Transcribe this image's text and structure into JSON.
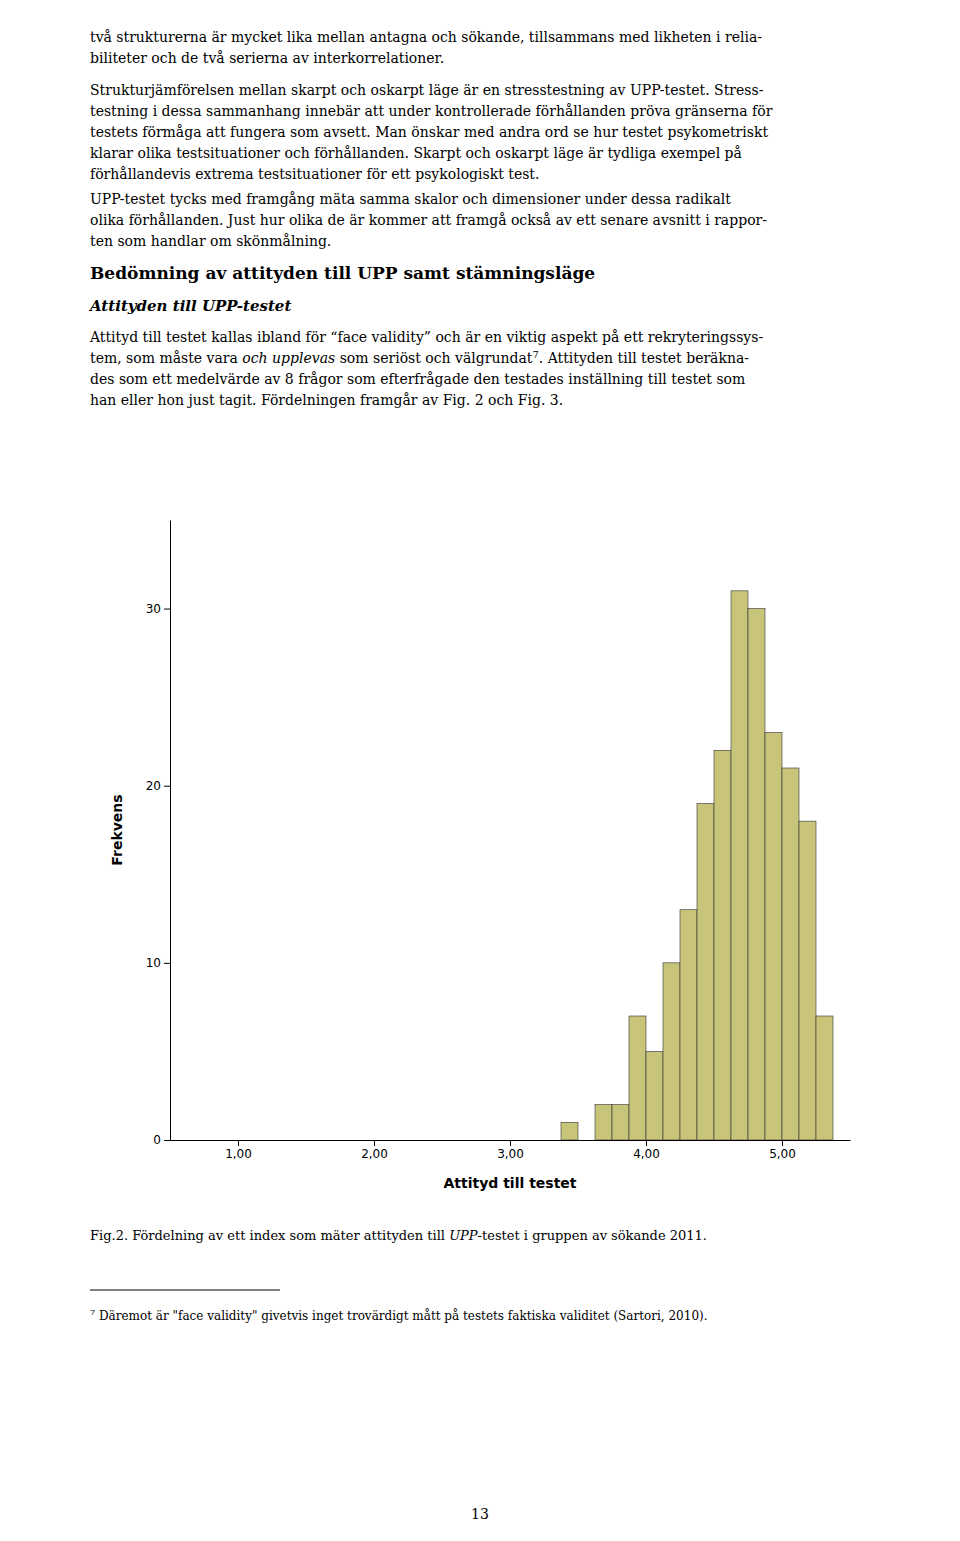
{
  "chart_data": {
    "type": "histogram",
    "xlabel": "Attityd till testet",
    "ylabel": "Frekvens",
    "bins": [
      1,
      1.125,
      1.25,
      1.375,
      1.5,
      1.625,
      1.75,
      1.875,
      2,
      2.125,
      2.25,
      2.375,
      2.5,
      2.625,
      2.75,
      2.875,
      3,
      3.125,
      3.25,
      3.375,
      3.5,
      3.625,
      3.75,
      3.875,
      4,
      4.125,
      4.25,
      4.375,
      4.5,
      4.625,
      4.75,
      4.875,
      5,
      5.125,
      5.25,
      5.375
    ],
    "values": [
      0,
      0,
      0,
      0,
      0,
      0,
      0,
      0,
      0,
      0,
      0,
      0,
      0,
      0,
      0,
      0,
      0,
      0,
      0,
      1,
      0,
      2,
      2,
      7,
      5,
      10,
      13,
      19,
      22,
      31,
      30,
      23,
      21,
      18,
      7
    ],
    "color": "#c8c47a",
    "xlim": [
      0.5,
      5.5
    ],
    "ylim": [
      0,
      35
    ],
    "xticks": [
      {
        "value": 1.0,
        "label": "1,00"
      },
      {
        "value": 2.0,
        "label": "2,00"
      },
      {
        "value": 3.0,
        "label": "3,00"
      },
      {
        "value": 4.0,
        "label": "4,00"
      },
      {
        "value": 5.0,
        "label": "5,00"
      }
    ],
    "yticks": [
      0,
      10,
      20,
      30
    ],
    "grid": false
  },
  "page": {
    "intro": [
      "två strukturerna är mycket lika mellan antagna och sökande, tillsammans med likheten i relia-",
      "biliteter och de två serierna av interkorrelationer."
    ],
    "para1": [
      "Strukturjämförelsen mellan skarpt och oskarpt läge är en stresstestning av UPP-testet. Stress-",
      "testning i dessa sammanhang innebär att under kontrollerade förhållanden pröva gränserna för",
      "testets förmåga att fungera som avsett. Man önskar med andra ord se hur testet psykometriskt",
      "klarar olika testsituationer och förhållanden. Skarpt och oskarpt läge är tydliga exempel på",
      "förhållandevis extrema testsituationer för ett psykologiskt test."
    ],
    "para2": [
      "UPP-testet tycks med framgång mäta samma skalor och dimensioner under dessa radikalt",
      "olika förhållanden. Just hur olika de är kommer att framgå också av ett senare avsnitt i rappor-",
      "ten som handlar om skönmålning."
    ],
    "heading": "Bedömning av attityden till UPP samt stämningsläge",
    "subheading": "Attityden till UPP-testet",
    "para3": [
      [
        {
          "text": "Attityd till testet kallas ibland för “face validity” och är en viktig aspekt på ett rekryteringssys-"
        }
      ],
      [
        {
          "text": "tem, som måste vara "
        },
        {
          "text": "och upplevas",
          "italic": true
        },
        {
          "text": " som seriöst och välgrundat"
        },
        {
          "text": "7",
          "super": true
        },
        {
          "text": ". Attityden till testet beräkna-"
        }
      ],
      [
        {
          "text": "des som ett medelvärde av 8 frågor som efterfrågade den testades inställning till testet som"
        }
      ],
      [
        {
          "text": "han eller hon just tagit. Fördelningen framgår av Fig. 2 och Fig. 3."
        }
      ]
    ],
    "caption": [
      {
        "text": "Fig.2. Fördelning av ett index som mäter attityden till "
      },
      {
        "text": "UPP",
        "italic": true
      },
      {
        "text": "-testet i gruppen av sökande 2011."
      }
    ],
    "footnote": [
      {
        "text": "7",
        "super": true
      },
      {
        "text": " Däremot är \"face validity\" givetvis inget trovärdigt mått på testets faktiska validitet (Sartori, 2010)."
      }
    ],
    "page_number": "13"
  }
}
